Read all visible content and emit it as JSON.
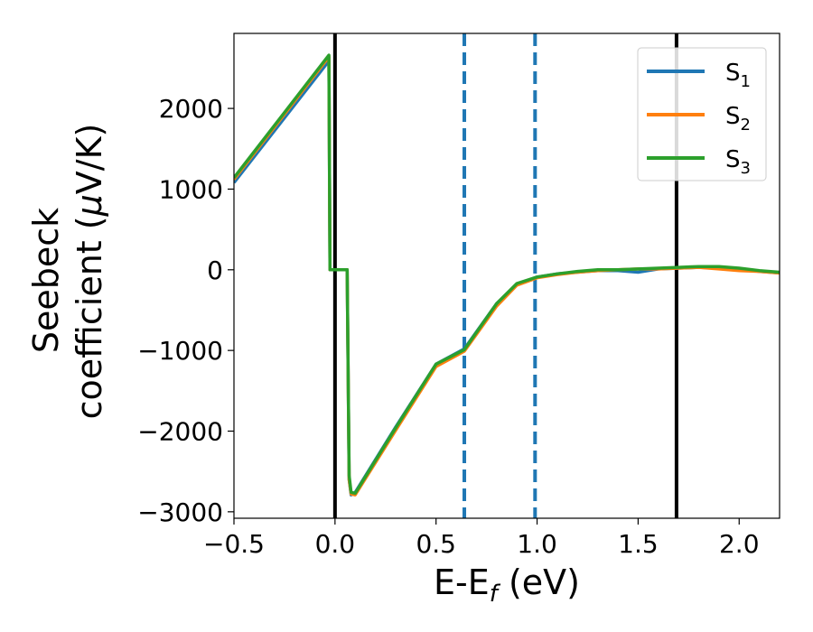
{
  "chart_data": {
    "type": "line",
    "title": "",
    "xlabel": "E-E",
    "xlabel_sub": "f",
    "xlabel_unit": " (eV)",
    "ylabel_line1": "Seebeck",
    "ylabel_line2": "coefficient  (",
    "ylabel_mu": "μ",
    "ylabel_unit": "V/K)",
    "xlim": [
      -0.5,
      2.2
    ],
    "ylim": [
      -3080,
      2930
    ],
    "xticks": [
      -0.5,
      0.0,
      0.5,
      1.0,
      1.5,
      2.0
    ],
    "xtick_labels": [
      "−0.5",
      "0.0",
      "0.5",
      "1.0",
      "1.5",
      "2.0"
    ],
    "yticks": [
      -3000,
      -2000,
      -1000,
      0,
      1000,
      2000
    ],
    "ytick_labels": [
      "−3000",
      "−2000",
      "−1000",
      "0",
      "1000",
      "2000"
    ],
    "grid": false,
    "legend_position": "top-right",
    "vlines": [
      {
        "x": 0.0,
        "style": "solid",
        "color": "#000000"
      },
      {
        "x": 0.64,
        "style": "dashed",
        "color": "#1f77b4"
      },
      {
        "x": 0.99,
        "style": "dashed",
        "color": "#1f77b4"
      },
      {
        "x": 1.69,
        "style": "solid",
        "color": "#000000"
      }
    ],
    "series": [
      {
        "name": "S",
        "name_sub": "1",
        "color": "#1f77b4",
        "x": [
          -0.5,
          -0.03,
          -0.025,
          0.06,
          0.07,
          0.08,
          0.1,
          0.3,
          0.5,
          0.64,
          0.8,
          0.9,
          1.0,
          1.1,
          1.2,
          1.3,
          1.4,
          1.5,
          1.6,
          1.7,
          1.8,
          1.9,
          2.0,
          2.1,
          2.2
        ],
        "y": [
          1080,
          2590,
          0,
          0,
          -2600,
          -2790,
          -2760,
          -1950,
          -1170,
          -980,
          -420,
          -180,
          -90,
          -50,
          -30,
          -10,
          -10,
          -30,
          10,
          20,
          30,
          20,
          10,
          -20,
          -40
        ]
      },
      {
        "name": "S",
        "name_sub": "2",
        "color": "#ff7f0e",
        "x": [
          -0.5,
          -0.03,
          -0.025,
          0.06,
          0.07,
          0.08,
          0.1,
          0.3,
          0.5,
          0.64,
          0.8,
          0.9,
          1.0,
          1.1,
          1.2,
          1.3,
          1.4,
          1.5,
          1.6,
          1.7,
          1.8,
          1.9,
          2.0,
          2.1,
          2.2
        ],
        "y": [
          1120,
          2640,
          0,
          0,
          -2600,
          -2780,
          -2790,
          -1990,
          -1200,
          -1010,
          -450,
          -190,
          -100,
          -60,
          -30,
          -10,
          0,
          10,
          10,
          20,
          30,
          10,
          -10,
          -20,
          -40
        ]
      },
      {
        "name": "S",
        "name_sub": "3",
        "color": "#2ca02c",
        "x": [
          -0.5,
          -0.03,
          -0.025,
          0.06,
          0.07,
          0.08,
          0.1,
          0.3,
          0.5,
          0.64,
          0.8,
          0.9,
          1.0,
          1.1,
          1.2,
          1.3,
          1.4,
          1.5,
          1.6,
          1.7,
          1.8,
          1.9,
          2.0,
          2.1,
          2.2
        ],
        "y": [
          1140,
          2660,
          0,
          0,
          -2550,
          -2760,
          -2770,
          -1960,
          -1170,
          -990,
          -420,
          -170,
          -90,
          -50,
          -20,
          0,
          0,
          10,
          20,
          30,
          40,
          40,
          20,
          -10,
          -30
        ]
      }
    ]
  }
}
